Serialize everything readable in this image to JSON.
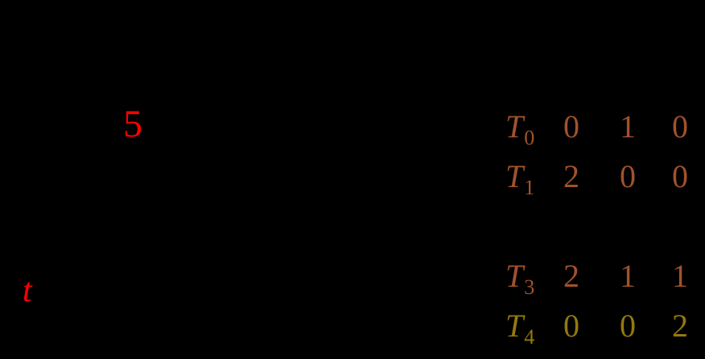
{
  "slide": {
    "background": "#000000"
  },
  "figure": {
    "tick_label": "5",
    "axis_label": "t",
    "label_color": "#ff0000"
  },
  "table": {
    "rows": [
      {
        "label": "T",
        "sub": "0",
        "values": [
          "0",
          "1",
          "0"
        ],
        "color": "#a0522d"
      },
      {
        "label": "T",
        "sub": "1",
        "values": [
          "2",
          "0",
          "0"
        ],
        "color": "#a0522d"
      },
      {
        "label": "T",
        "sub": "3",
        "values": [
          "2",
          "1",
          "1"
        ],
        "color": "#a0522d"
      },
      {
        "label": "T",
        "sub": "4",
        "values": [
          "0",
          "0",
          "2"
        ],
        "color": "#94790d"
      }
    ]
  }
}
